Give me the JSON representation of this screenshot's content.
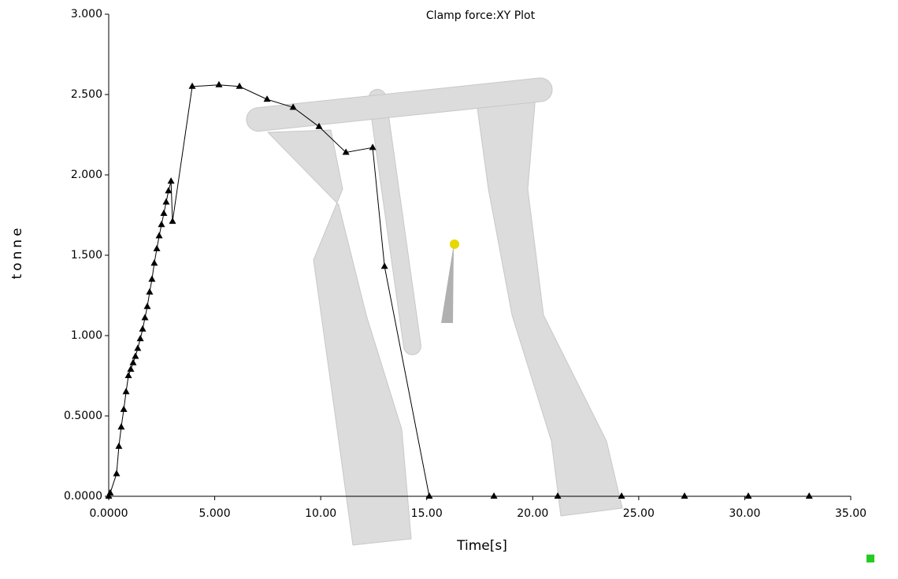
{
  "chart_data": {
    "type": "line",
    "title": "Clamp force:XY Plot",
    "x_label": "Time[s]",
    "y_label": "tonne",
    "x": [
      0,
      0.07,
      0.37,
      0.48,
      0.59,
      0.71,
      0.82,
      0.93,
      1.04,
      1.15,
      1.26,
      1.37,
      1.49,
      1.6,
      1.71,
      1.82,
      1.93,
      2.04,
      2.15,
      2.27,
      2.38,
      2.49,
      2.6,
      2.71,
      2.82,
      2.94,
      3.01,
      3.94,
      5.2,
      6.17,
      7.47,
      8.7,
      9.92,
      11.19,
      12.45,
      13.01,
      15.12,
      18.17,
      21.18,
      24.19,
      27.16,
      30.17,
      33.04
    ],
    "values": [
      0,
      0.02,
      0.14,
      0.31,
      0.43,
      0.54,
      0.65,
      0.75,
      0.79,
      0.83,
      0.87,
      0.92,
      0.98,
      1.04,
      1.11,
      1.18,
      1.27,
      1.35,
      1.45,
      1.54,
      1.62,
      1.69,
      1.76,
      1.83,
      1.9,
      1.96,
      1.71,
      2.55,
      2.56,
      2.55,
      2.47,
      2.42,
      2.3,
      2.14,
      2.17,
      1.43,
      0,
      0,
      0,
      0,
      0,
      0,
      0
    ],
    "color": "#000000",
    "xlim": [
      0,
      35
    ],
    "xticks": [
      {
        "value": 0,
        "label": "0.0000"
      },
      {
        "value": 5,
        "label": "5.000"
      },
      {
        "value": 10,
        "label": "10.00"
      },
      {
        "value": 15,
        "label": "15.00"
      },
      {
        "value": 20,
        "label": "20.00"
      },
      {
        "value": 25,
        "label": "25.00"
      },
      {
        "value": 30,
        "label": "30.00"
      },
      {
        "value": 35,
        "label": "35.00"
      }
    ],
    "ylim": [
      0,
      3
    ],
    "yticks": [
      {
        "value": 0,
        "label": "0.0000"
      },
      {
        "value": 0.5,
        "label": "0.5000"
      },
      {
        "value": 1,
        "label": "1.000"
      },
      {
        "value": 1.5,
        "label": "1.500"
      },
      {
        "value": 2,
        "label": "2.000"
      },
      {
        "value": 2.5,
        "label": "2.500"
      },
      {
        "value": 3,
        "label": "3.000"
      }
    ],
    "grid": false
  }
}
